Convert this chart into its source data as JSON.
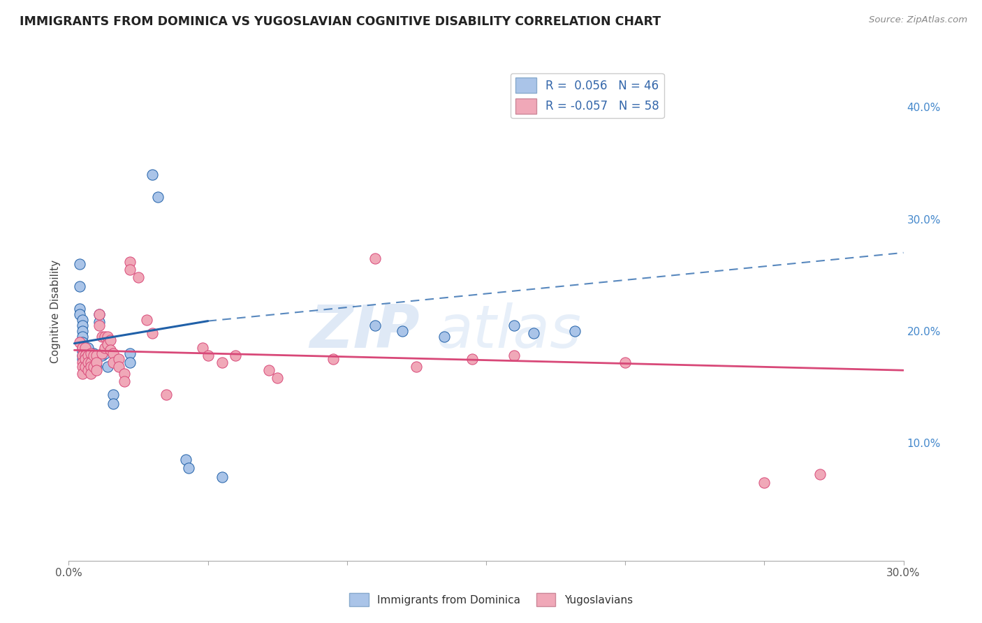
{
  "title": "IMMIGRANTS FROM DOMINICA VS YUGOSLAVIAN COGNITIVE DISABILITY CORRELATION CHART",
  "source": "Source: ZipAtlas.com",
  "ylabel_label": "Cognitive Disability",
  "right_yticks": [
    10.0,
    20.0,
    30.0,
    40.0
  ],
  "xlim": [
    0.0,
    0.3
  ],
  "ylim": [
    -0.005,
    0.44
  ],
  "legend_blue_r": "R =  0.056",
  "legend_blue_n": "N = 46",
  "legend_pink_r": "R = -0.057",
  "legend_pink_n": "N = 58",
  "blue_color": "#aac4e8",
  "blue_line_color": "#2060a8",
  "pink_color": "#f0a8b8",
  "pink_line_color": "#d84878",
  "blue_scatter": [
    [
      0.004,
      0.26
    ],
    [
      0.004,
      0.24
    ],
    [
      0.004,
      0.22
    ],
    [
      0.004,
      0.215
    ],
    [
      0.005,
      0.21
    ],
    [
      0.005,
      0.205
    ],
    [
      0.005,
      0.2
    ],
    [
      0.005,
      0.195
    ],
    [
      0.005,
      0.19
    ],
    [
      0.005,
      0.185
    ],
    [
      0.005,
      0.182
    ],
    [
      0.005,
      0.178
    ],
    [
      0.005,
      0.175
    ],
    [
      0.006,
      0.185
    ],
    [
      0.006,
      0.18
    ],
    [
      0.006,
      0.175
    ],
    [
      0.006,
      0.17
    ],
    [
      0.006,
      0.165
    ],
    [
      0.007,
      0.185
    ],
    [
      0.007,
      0.175
    ],
    [
      0.007,
      0.168
    ],
    [
      0.008,
      0.178
    ],
    [
      0.008,
      0.172
    ],
    [
      0.009,
      0.18
    ],
    [
      0.01,
      0.175
    ],
    [
      0.01,
      0.168
    ],
    [
      0.011,
      0.215
    ],
    [
      0.011,
      0.208
    ],
    [
      0.012,
      0.178
    ],
    [
      0.013,
      0.18
    ],
    [
      0.014,
      0.168
    ],
    [
      0.016,
      0.143
    ],
    [
      0.016,
      0.135
    ],
    [
      0.022,
      0.18
    ],
    [
      0.022,
      0.172
    ],
    [
      0.03,
      0.34
    ],
    [
      0.032,
      0.32
    ],
    [
      0.042,
      0.085
    ],
    [
      0.043,
      0.078
    ],
    [
      0.055,
      0.07
    ],
    [
      0.11,
      0.205
    ],
    [
      0.12,
      0.2
    ],
    [
      0.135,
      0.195
    ],
    [
      0.16,
      0.205
    ],
    [
      0.167,
      0.198
    ],
    [
      0.182,
      0.2
    ]
  ],
  "pink_scatter": [
    [
      0.004,
      0.19
    ],
    [
      0.005,
      0.185
    ],
    [
      0.005,
      0.178
    ],
    [
      0.005,
      0.172
    ],
    [
      0.005,
      0.168
    ],
    [
      0.005,
      0.162
    ],
    [
      0.006,
      0.185
    ],
    [
      0.006,
      0.178
    ],
    [
      0.006,
      0.175
    ],
    [
      0.006,
      0.168
    ],
    [
      0.007,
      0.178
    ],
    [
      0.007,
      0.172
    ],
    [
      0.007,
      0.165
    ],
    [
      0.008,
      0.18
    ],
    [
      0.008,
      0.172
    ],
    [
      0.008,
      0.168
    ],
    [
      0.008,
      0.162
    ],
    [
      0.009,
      0.178
    ],
    [
      0.009,
      0.168
    ],
    [
      0.01,
      0.178
    ],
    [
      0.01,
      0.172
    ],
    [
      0.01,
      0.165
    ],
    [
      0.011,
      0.215
    ],
    [
      0.011,
      0.205
    ],
    [
      0.012,
      0.195
    ],
    [
      0.012,
      0.18
    ],
    [
      0.013,
      0.195
    ],
    [
      0.013,
      0.185
    ],
    [
      0.014,
      0.195
    ],
    [
      0.014,
      0.188
    ],
    [
      0.015,
      0.192
    ],
    [
      0.015,
      0.183
    ],
    [
      0.016,
      0.18
    ],
    [
      0.016,
      0.172
    ],
    [
      0.018,
      0.175
    ],
    [
      0.018,
      0.168
    ],
    [
      0.02,
      0.162
    ],
    [
      0.02,
      0.155
    ],
    [
      0.022,
      0.262
    ],
    [
      0.022,
      0.255
    ],
    [
      0.025,
      0.248
    ],
    [
      0.028,
      0.21
    ],
    [
      0.03,
      0.198
    ],
    [
      0.035,
      0.143
    ],
    [
      0.048,
      0.185
    ],
    [
      0.05,
      0.178
    ],
    [
      0.055,
      0.172
    ],
    [
      0.06,
      0.178
    ],
    [
      0.072,
      0.165
    ],
    [
      0.075,
      0.158
    ],
    [
      0.095,
      0.175
    ],
    [
      0.11,
      0.265
    ],
    [
      0.125,
      0.168
    ],
    [
      0.145,
      0.175
    ],
    [
      0.16,
      0.178
    ],
    [
      0.2,
      0.172
    ],
    [
      0.25,
      0.065
    ],
    [
      0.27,
      0.072
    ]
  ],
  "blue_trendline_solid": {
    "x_start": 0.002,
    "x_end": 0.05,
    "y_start": 0.189,
    "y_end": 0.209
  },
  "blue_trendline_dash": {
    "x_start": 0.05,
    "x_end": 0.3,
    "y_start": 0.209,
    "y_end": 0.27
  },
  "pink_trendline": {
    "x_start": 0.002,
    "x_end": 0.3,
    "y_start": 0.183,
    "y_end": 0.165
  },
  "watermark_zip": "ZIP",
  "watermark_atlas": "atlas",
  "bg_color": "#ffffff",
  "grid_color": "#d0d8e8",
  "x_tick_vals": [
    0.0,
    0.05,
    0.1,
    0.15,
    0.2,
    0.25,
    0.3
  ],
  "x_tick_labels": [
    "0.0%",
    "",
    "",
    "",
    "",
    "",
    "30.0%"
  ],
  "bottom_leg_labels": [
    "Immigrants from Dominica",
    "Yugoslavians"
  ]
}
